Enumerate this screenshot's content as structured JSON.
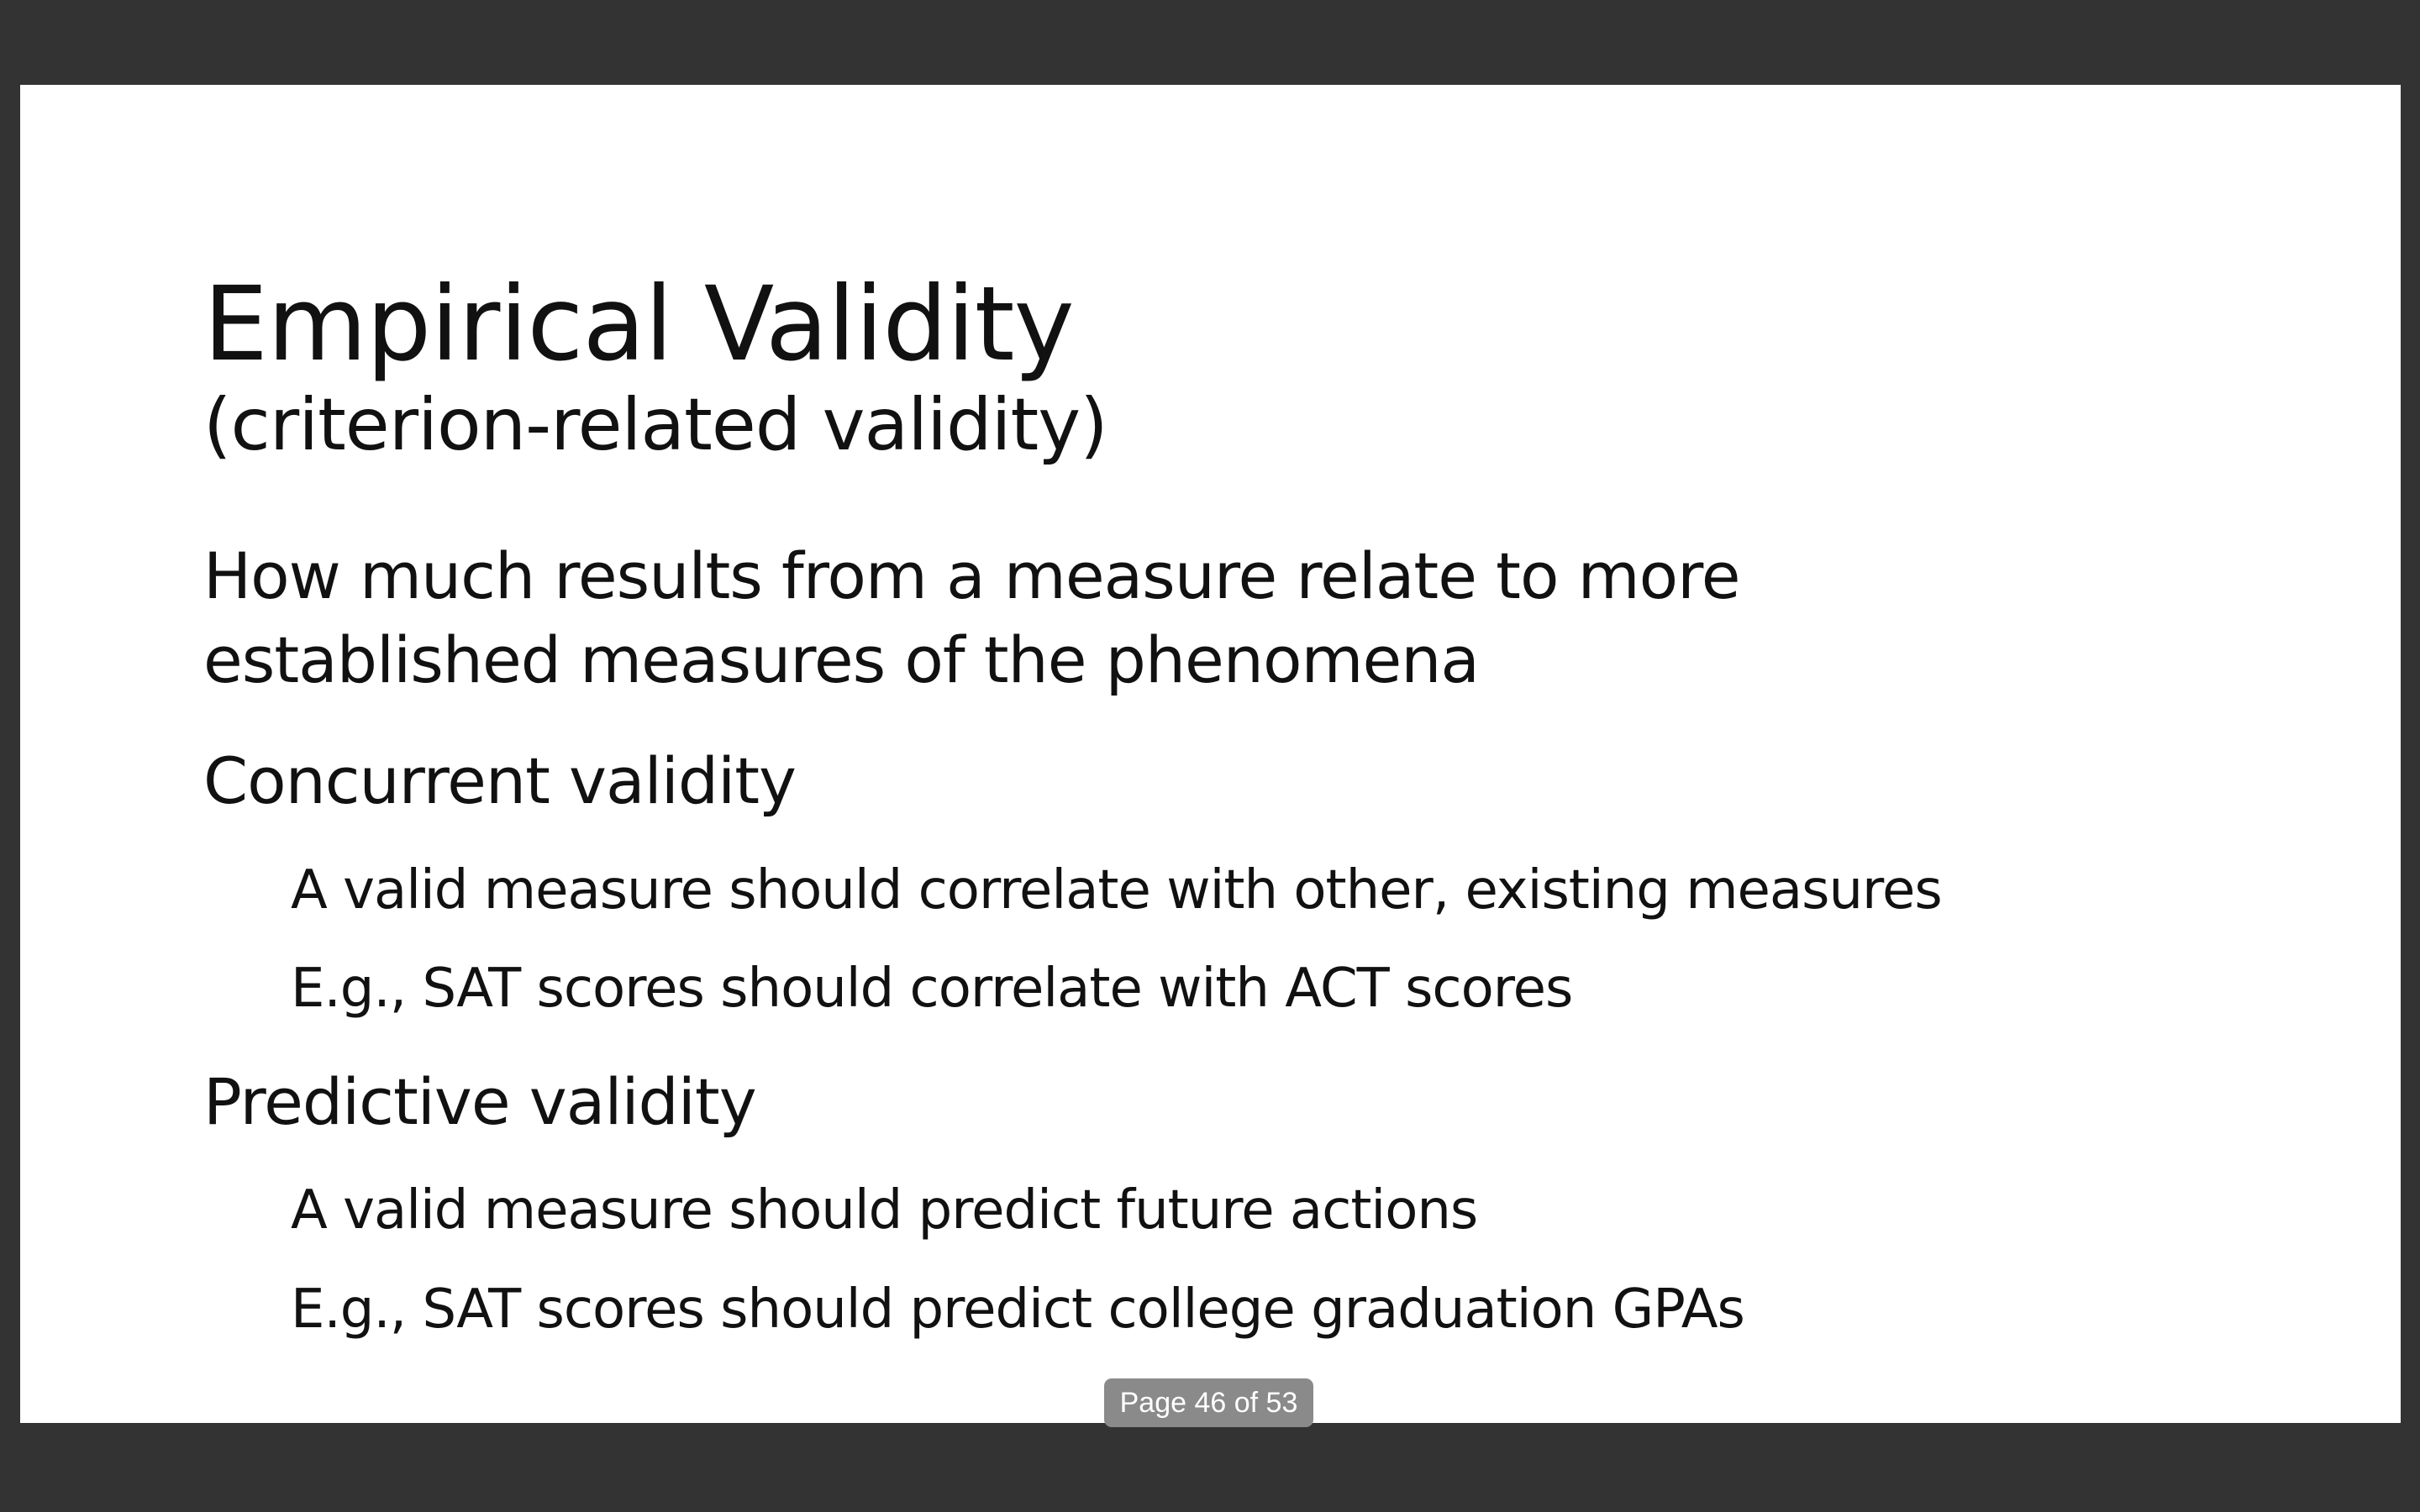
{
  "slide": {
    "title": "Empirical Validity",
    "subtitle": "(criterion-related validity)",
    "intro_line1": "How much results from a measure relate to more",
    "intro_line2": "established measures of the phenomena",
    "sections": [
      {
        "heading": "Concurrent validity",
        "points": [
          "A valid measure should correlate with other, existing measures",
          "E.g., SAT scores should correlate with ACT scores"
        ]
      },
      {
        "heading": "Predictive validity",
        "points": [
          "A valid measure should predict future actions",
          "E.g., SAT scores should predict college graduation GPAs"
        ]
      }
    ]
  },
  "viewer": {
    "page_indicator": "Page 46 of 53"
  },
  "colors": {
    "background": "#333333",
    "slide": "#ffffff",
    "text": "#111111",
    "page_indicator_bg": "#8a8a8a"
  }
}
